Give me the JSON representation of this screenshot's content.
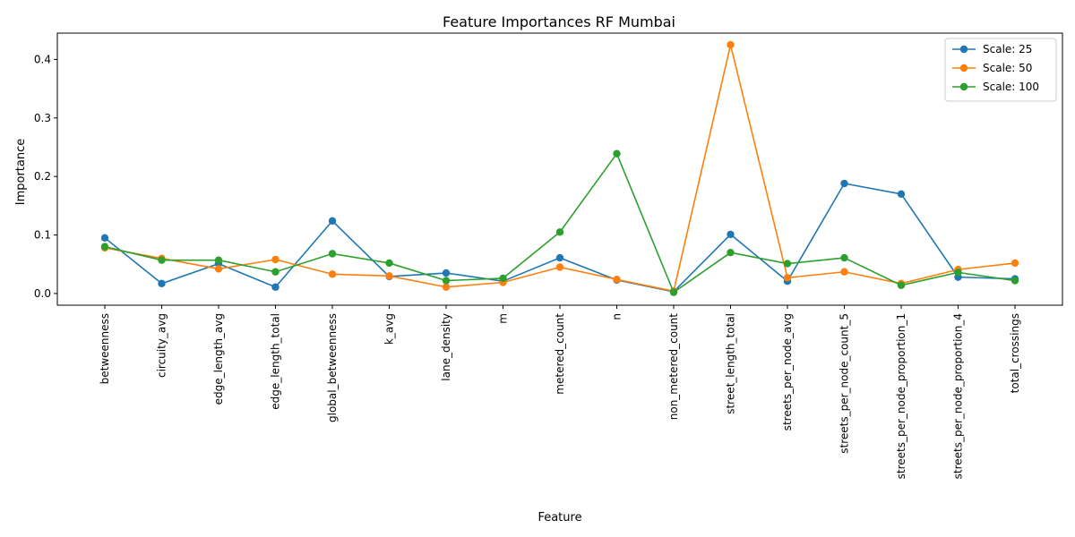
{
  "chart_data": {
    "type": "line",
    "title": "Feature Importances RF Mumbai",
    "xlabel": "Feature",
    "ylabel": "Importance",
    "ylim": [
      -0.02,
      0.445
    ],
    "yticks": [
      0.0,
      0.1,
      0.2,
      0.3,
      0.4
    ],
    "ytick_labels": [
      "0.0",
      "0.1",
      "0.2",
      "0.3",
      "0.4"
    ],
    "grid": false,
    "legend_position": "top-right",
    "categories": [
      "betweenness",
      "circuity_avg",
      "edge_length_avg",
      "edge_length_total",
      "global_betweenness",
      "k_avg",
      "lane_density",
      "m",
      "metered_count",
      "n",
      "non_metered_count",
      "street_length_total",
      "streets_per_node_avg",
      "streets_per_node_count_5",
      "streets_per_node_proportion_1",
      "streets_per_node_proportion_4",
      "total_crossings"
    ],
    "series": [
      {
        "name": "Scale: 25",
        "color": "#1f77b4",
        "values": [
          0.095,
          0.017,
          0.051,
          0.011,
          0.124,
          0.029,
          0.035,
          0.021,
          0.061,
          0.023,
          0.003,
          0.101,
          0.021,
          0.188,
          0.17,
          0.028,
          0.025
        ]
      },
      {
        "name": "Scale: 50",
        "color": "#ff7f0e",
        "values": [
          0.078,
          0.06,
          0.042,
          0.058,
          0.033,
          0.03,
          0.011,
          0.019,
          0.045,
          0.024,
          0.004,
          0.425,
          0.027,
          0.037,
          0.017,
          0.041,
          0.052
        ]
      },
      {
        "name": "Scale: 100",
        "color": "#2ca02c",
        "values": [
          0.08,
          0.057,
          0.057,
          0.037,
          0.068,
          0.052,
          0.022,
          0.026,
          0.105,
          0.239,
          0.002,
          0.07,
          0.051,
          0.061,
          0.014,
          0.036,
          0.022
        ]
      }
    ]
  }
}
